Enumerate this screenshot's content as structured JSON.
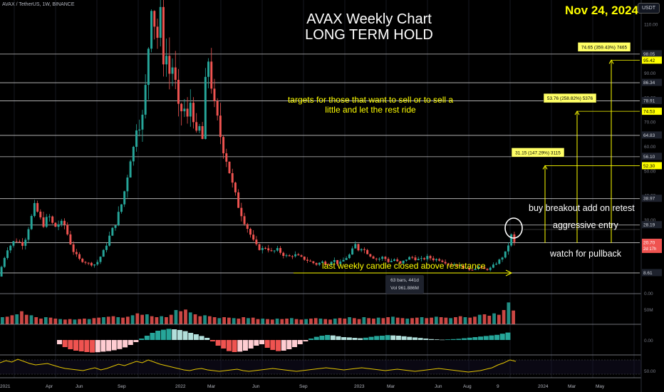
{
  "header": {
    "symbol": "AVAX / TetherUS, 1W, BINANCE",
    "date": "Nov 24, 2024",
    "currency": "USDT"
  },
  "annotations": {
    "title_line1": "AVAX  Weekly Chart",
    "title_line2": "LONG TERM HOLD",
    "targets_note": "targets for those that want to sell or to sell a little and let the rest ride",
    "breakout": "buy breakout add on retest",
    "aggressive": "aggressive entry",
    "pullback": "watch for pullback",
    "last_candle": "last weekly candle closed above resistance",
    "info_bars": "63 bars, 441d",
    "info_vol": "Vol 961.886M"
  },
  "colors": {
    "bull": "#26a69a",
    "bear": "#ef5350",
    "annotation": "#ffff00",
    "price_tag": "#ef5350",
    "rsi_line": "#e5c600"
  },
  "chart_data": [
    {
      "type": "candlestick",
      "panel": "price",
      "ylim": [
        0,
        120
      ],
      "y_ticks": [
        "110.00",
        "90.00",
        "80.00",
        "70.00",
        "60.00",
        "50.00",
        "40.00",
        "30.00",
        "0.00"
      ],
      "x_ticks": [
        "2021",
        "Apr",
        "Jun",
        "Sep",
        "2022",
        "Mar",
        "Jun",
        "Sep",
        "2023",
        "Mar",
        "Jun",
        "Aug",
        "9",
        "2024",
        "Mar",
        "May"
      ],
      "horizontal_levels": [
        98.05,
        86.34,
        78.91,
        64.83,
        56.1,
        38.97,
        28.19,
        20.99,
        8.61
      ],
      "target_boxes": [
        {
          "label": "74.65 (359.43%) 7465",
          "tag": "95.42",
          "value": 95.42
        },
        {
          "label": "53.76 (258.82%) 5376",
          "tag": "74.53",
          "value": 74.53
        },
        {
          "label": "31.15 (147.29%) 3115",
          "tag": "52.30",
          "value": 52.3
        }
      ],
      "last_price": "20.70",
      "countdown": "2d 17h",
      "level_tags": [
        "98.05",
        "86.34",
        "78.91",
        "64.83",
        "56.10",
        "38.97",
        "28.19",
        "20.99",
        "8.61"
      ],
      "path": [
        [
          0,
          7
        ],
        [
          3,
          18
        ],
        [
          6,
          22
        ],
        [
          9,
          20
        ],
        [
          13,
          36
        ],
        [
          16,
          28
        ],
        [
          18,
          32
        ],
        [
          20,
          27
        ],
        [
          22,
          29
        ],
        [
          24,
          28
        ],
        [
          25,
          23
        ],
        [
          27,
          17
        ],
        [
          29,
          14
        ],
        [
          31,
          13
        ],
        [
          33,
          12
        ],
        [
          35,
          12
        ],
        [
          36,
          14
        ],
        [
          38,
          18
        ],
        [
          40,
          24
        ],
        [
          42,
          29
        ],
        [
          44,
          36
        ],
        [
          46,
          46
        ],
        [
          47,
          56
        ],
        [
          48,
          55
        ],
        [
          49,
          66
        ],
        [
          50,
          72
        ],
        [
          51,
          68
        ],
        [
          52,
          74
        ],
        [
          53,
          88
        ],
        [
          54,
          105
        ],
        [
          55,
          122
        ],
        [
          56,
          110
        ],
        [
          57,
          105
        ],
        [
          58,
          115
        ],
        [
          59,
          96
        ],
        [
          60,
          100
        ],
        [
          61,
          88
        ],
        [
          62,
          95
        ],
        [
          63,
          90
        ],
        [
          64,
          80
        ],
        [
          65,
          70
        ],
        [
          66,
          78
        ],
        [
          67,
          74
        ],
        [
          68,
          70
        ],
        [
          69,
          80
        ],
        [
          70,
          72
        ],
        [
          71,
          64
        ],
        [
          72,
          68
        ],
        [
          73,
          60
        ],
        [
          74,
          82
        ],
        [
          75,
          98
        ],
        [
          76,
          90
        ],
        [
          77,
          78
        ],
        [
          78,
          74
        ],
        [
          79,
          68
        ],
        [
          80,
          62
        ],
        [
          82,
          54
        ],
        [
          84,
          44
        ],
        [
          86,
          36
        ],
        [
          88,
          30
        ],
        [
          90,
          25
        ],
        [
          92,
          20
        ],
        [
          94,
          18
        ],
        [
          96,
          19
        ],
        [
          98,
          17
        ],
        [
          100,
          18
        ],
        [
          102,
          16
        ],
        [
          104,
          15
        ],
        [
          106,
          16
        ],
        [
          108,
          15
        ],
        [
          110,
          14
        ],
        [
          112,
          13
        ],
        [
          114,
          12
        ],
        [
          116,
          13
        ],
        [
          118,
          12
        ],
        [
          120,
          14
        ],
        [
          122,
          12
        ],
        [
          124,
          14
        ],
        [
          126,
          16
        ],
        [
          128,
          20
        ],
        [
          129,
          18
        ],
        [
          130,
          19
        ],
        [
          132,
          17
        ],
        [
          134,
          15
        ],
        [
          136,
          14
        ],
        [
          138,
          15
        ],
        [
          140,
          13
        ],
        [
          142,
          14
        ],
        [
          144,
          12
        ],
        [
          146,
          14
        ],
        [
          148,
          15
        ],
        [
          150,
          14
        ],
        [
          152,
          14
        ],
        [
          154,
          15
        ],
        [
          156,
          14
        ],
        [
          158,
          14
        ],
        [
          160,
          13
        ],
        [
          162,
          12
        ],
        [
          164,
          12
        ],
        [
          166,
          11
        ],
        [
          168,
          10
        ],
        [
          170,
          10
        ],
        [
          172,
          11
        ],
        [
          174,
          10
        ],
        [
          176,
          10
        ],
        [
          178,
          12
        ],
        [
          180,
          14
        ],
        [
          182,
          17
        ],
        [
          184,
          24
        ],
        [
          185,
          20.7
        ]
      ]
    },
    {
      "type": "bar",
      "panel": "volume",
      "title": "",
      "y_ticks": [
        "50M"
      ],
      "ylim": [
        0,
        120
      ],
      "values": [
        30,
        32,
        38,
        42,
        55,
        40,
        38,
        30,
        24,
        30,
        28,
        24,
        22,
        20,
        22,
        20,
        22,
        24,
        22,
        26,
        28,
        30,
        32,
        34,
        30,
        28,
        32,
        38,
        46,
        40,
        42,
        34,
        30,
        34,
        30,
        40,
        60,
        55,
        62,
        50,
        42,
        34,
        38,
        34,
        30,
        26,
        30,
        28,
        26,
        24,
        30,
        26,
        28,
        22,
        24,
        22,
        20,
        24,
        22,
        24,
        26,
        22,
        20,
        22,
        24,
        26,
        24,
        22,
        20,
        24,
        26,
        24,
        30,
        26,
        22,
        30,
        26,
        24,
        28,
        26,
        30,
        32,
        28,
        26,
        24,
        26,
        28,
        30,
        26,
        28,
        32,
        30,
        28,
        26,
        30,
        34,
        30,
        28,
        32,
        40,
        42,
        36,
        46,
        40,
        60,
        92,
        58
      ]
    },
    {
      "type": "bar",
      "panel": "momentum",
      "y_ticks": [
        "0.00"
      ],
      "ylim": [
        -100,
        100
      ],
      "values": [
        -30,
        -50,
        -65,
        -75,
        -80,
        -85,
        -88,
        -86,
        -82,
        -78,
        -72,
        -64,
        -52,
        -35,
        -15,
        10,
        30,
        50,
        65,
        72,
        78,
        75,
        70,
        62,
        50,
        40,
        28,
        15,
        -10,
        -40,
        -60,
        -78,
        -85,
        -82,
        -75,
        -60,
        -40,
        -30,
        -55,
        -70,
        -78,
        -75,
        -65,
        -50,
        -30,
        -10,
        10,
        22,
        30,
        35,
        32,
        26,
        20,
        18,
        15,
        12,
        16,
        22,
        28,
        30,
        34,
        32,
        30,
        26,
        22,
        18,
        14,
        10,
        6,
        4,
        2,
        4,
        6,
        8,
        12,
        16,
        20,
        24,
        28,
        32,
        36,
        44,
        52
      ]
    },
    {
      "type": "line",
      "panel": "rsi",
      "y_ticks": [
        "50.00"
      ],
      "ylim": [
        20,
        80
      ],
      "values": [
        62,
        68,
        64,
        72,
        66,
        60,
        56,
        58,
        60,
        55,
        50,
        46,
        44,
        42,
        40,
        44,
        48,
        42,
        46,
        52,
        58,
        54,
        60,
        66,
        62,
        70,
        64,
        58,
        54,
        50,
        46,
        42,
        40,
        44,
        46,
        42,
        40,
        38,
        40,
        42,
        44,
        40,
        38,
        40,
        42,
        44,
        46,
        44,
        42,
        40,
        38,
        40,
        42,
        44,
        46,
        48,
        46,
        44,
        42,
        44,
        46,
        48,
        46,
        44,
        42,
        40,
        42,
        44,
        42,
        40,
        38,
        40,
        42,
        44,
        46,
        44,
        42,
        40,
        38,
        36,
        38,
        40,
        44,
        48,
        56,
        62,
        70,
        66
      ]
    }
  ]
}
